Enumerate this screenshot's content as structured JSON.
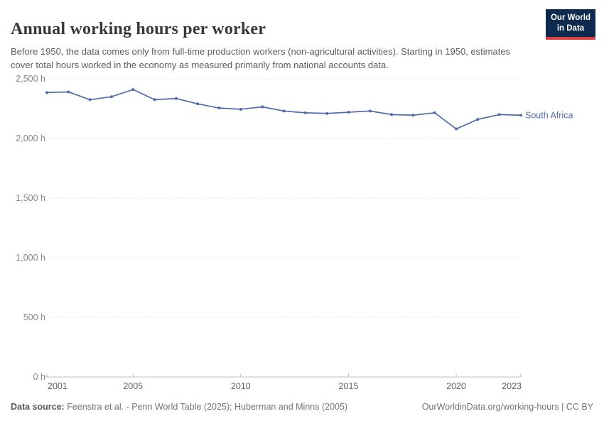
{
  "header": {
    "title": "Annual working hours per worker",
    "subtitle": "Before 1950, the data comes only from full-time production workers (non-agricultural activities). Starting in 1950, estimates cover total hours worked in the economy as measured primarily from national accounts data.",
    "logo": {
      "line1": "Our World",
      "line2": "in Data"
    }
  },
  "chart_data": {
    "type": "line",
    "title": "Annual working hours per worker",
    "xlabel": "",
    "ylabel": "",
    "xlim": [
      2001,
      2023
    ],
    "ylim": [
      0,
      2500
    ],
    "grid": "horizontal-dashed",
    "legend_position": "end-of-line-label",
    "series": [
      {
        "name": "South Africa",
        "color": "#4e6ca8",
        "x": [
          2001,
          2002,
          2003,
          2004,
          2005,
          2006,
          2007,
          2008,
          2009,
          2010,
          2011,
          2012,
          2013,
          2014,
          2015,
          2016,
          2017,
          2018,
          2019,
          2020,
          2021,
          2022,
          2023
        ],
        "values": [
          2385,
          2390,
          2325,
          2350,
          2410,
          2325,
          2335,
          2290,
          2255,
          2245,
          2265,
          2230,
          2215,
          2210,
          2220,
          2230,
          2200,
          2195,
          2215,
          2080,
          2160,
          2200,
          2195
        ]
      }
    ],
    "yticks": [
      {
        "value": 0,
        "label": "0 h"
      },
      {
        "value": 500,
        "label": "500 h"
      },
      {
        "value": 1000,
        "label": "1,000 h"
      },
      {
        "value": 1500,
        "label": "1,500 h"
      },
      {
        "value": 2000,
        "label": "2,000 h"
      },
      {
        "value": 2500,
        "label": "2,500 h"
      }
    ],
    "xticks": [
      {
        "value": 2001,
        "label": "2001"
      },
      {
        "value": 2005,
        "label": "2005"
      },
      {
        "value": 2010,
        "label": "2010"
      },
      {
        "value": 2015,
        "label": "2015"
      },
      {
        "value": 2020,
        "label": "2020"
      },
      {
        "value": 2023,
        "label": "2023"
      }
    ]
  },
  "footer": {
    "source_label": "Data source:",
    "source_text": " Feenstra et al. - Penn World Table (2025); Huberman and Minns (2005)",
    "link": "OurWorldinData.org/working-hours | CC BY"
  },
  "colors": {
    "line": "#4e6ca8",
    "gridline": "#dcdcdc",
    "axis": "#c0c0c0",
    "ytick_text": "#878787",
    "xtick_text": "#606060",
    "logo_bg": "#0e2a4e",
    "logo_stripe": "#dc3f45"
  }
}
